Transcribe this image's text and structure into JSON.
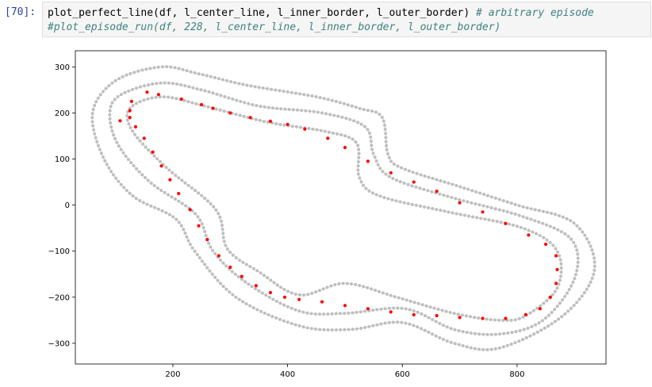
{
  "cell": {
    "prompt": "[70]:",
    "code_line1_main": "plot_perfect_line(df, l_center_line, l_inner_border, l_outer_border) ",
    "code_line1_comment": "# arbitrary episode",
    "code_line2_comment": "#plot_episode_run(df, 228, l_center_line, l_inner_border, l_outer_border)"
  },
  "colors": {
    "track_points": "#bfbfbf",
    "racing_line": "#ff0000",
    "prompt": "#303f9f",
    "comment": "#408080"
  },
  "chart_data": {
    "type": "scatter",
    "title": "",
    "xlabel": "",
    "ylabel": "",
    "xlim": [
      30,
      955
    ],
    "ylim": [
      -345,
      335
    ],
    "xticks": [
      200,
      400,
      600,
      800
    ],
    "yticks": [
      300,
      200,
      100,
      0,
      -100,
      -200,
      -300
    ],
    "grid": false,
    "series": [
      {
        "role": "outer_border",
        "color": "#bfbfbf",
        "points": [
          [
            100,
            270
          ],
          [
            180,
            300
          ],
          [
            245,
            285
          ],
          [
            330,
            260
          ],
          [
            450,
            235
          ],
          [
            525,
            210
          ],
          [
            565,
            190
          ],
          [
            575,
            110
          ],
          [
            600,
            80
          ],
          [
            700,
            40
          ],
          [
            800,
            0
          ],
          [
            900,
            -40
          ],
          [
            935,
            -140
          ],
          [
            880,
            -240
          ],
          [
            770,
            -310
          ],
          [
            690,
            -300
          ],
          [
            600,
            -255
          ],
          [
            510,
            -270
          ],
          [
            420,
            -262
          ],
          [
            310,
            -200
          ],
          [
            238,
            -100
          ],
          [
            205,
            -30
          ],
          [
            130,
            20
          ],
          [
            80,
            100
          ],
          [
            60,
            200
          ]
        ]
      },
      {
        "role": "center_line",
        "color": "#bfbfbf",
        "points": [
          [
            110,
            240
          ],
          [
            180,
            265
          ],
          [
            250,
            250
          ],
          [
            350,
            215
          ],
          [
            460,
            200
          ],
          [
            535,
            170
          ],
          [
            550,
            110
          ],
          [
            580,
            60
          ],
          [
            690,
            15
          ],
          [
            810,
            -25
          ],
          [
            895,
            -75
          ],
          [
            900,
            -160
          ],
          [
            845,
            -250
          ],
          [
            770,
            -280
          ],
          [
            690,
            -270
          ],
          [
            605,
            -225
          ],
          [
            500,
            -235
          ],
          [
            420,
            -230
          ],
          [
            330,
            -170
          ],
          [
            270,
            -100
          ],
          [
            240,
            -20
          ],
          [
            160,
            50
          ],
          [
            105,
            130
          ],
          [
            90,
            200
          ]
        ]
      },
      {
        "role": "inner_border",
        "color": "#bfbfbf",
        "points": [
          [
            125,
            210
          ],
          [
            180,
            235
          ],
          [
            255,
            215
          ],
          [
            365,
            180
          ],
          [
            465,
            160
          ],
          [
            520,
            135
          ],
          [
            525,
            60
          ],
          [
            560,
            20
          ],
          [
            680,
            -15
          ],
          [
            810,
            -50
          ],
          [
            870,
            -100
          ],
          [
            870,
            -180
          ],
          [
            815,
            -240
          ],
          [
            770,
            -250
          ],
          [
            690,
            -235
          ],
          [
            590,
            -200
          ],
          [
            500,
            -170
          ],
          [
            420,
            -195
          ],
          [
            350,
            -145
          ],
          [
            295,
            -95
          ],
          [
            275,
            -10
          ],
          [
            190,
            80
          ],
          [
            130,
            160
          ]
        ]
      },
      {
        "role": "racing_line",
        "color": "#ff0000",
        "points": [
          [
            108,
            183
          ],
          [
            125,
            205
          ],
          [
            128,
            225
          ],
          [
            155,
            245
          ],
          [
            175,
            240
          ],
          [
            215,
            230
          ],
          [
            250,
            218
          ],
          [
            270,
            210
          ],
          [
            300,
            200
          ],
          [
            335,
            190
          ],
          [
            370,
            182
          ],
          [
            400,
            175
          ],
          [
            430,
            165
          ],
          [
            470,
            145
          ],
          [
            500,
            125
          ],
          [
            540,
            95
          ],
          [
            580,
            70
          ],
          [
            620,
            50
          ],
          [
            660,
            30
          ],
          [
            700,
            5
          ],
          [
            740,
            -15
          ],
          [
            780,
            -40
          ],
          [
            820,
            -65
          ],
          [
            850,
            -85
          ],
          [
            868,
            -110
          ],
          [
            870,
            -140
          ],
          [
            868,
            -170
          ],
          [
            858,
            -200
          ],
          [
            840,
            -225
          ],
          [
            815,
            -238
          ],
          [
            780,
            -246
          ],
          [
            740,
            -246
          ],
          [
            700,
            -244
          ],
          [
            660,
            -240
          ],
          [
            620,
            -238
          ],
          [
            580,
            -232
          ],
          [
            540,
            -225
          ],
          [
            500,
            -218
          ],
          [
            460,
            -210
          ],
          [
            420,
            -205
          ],
          [
            395,
            -200
          ],
          [
            370,
            -190
          ],
          [
            345,
            -175
          ],
          [
            320,
            -155
          ],
          [
            300,
            -135
          ],
          [
            280,
            -110
          ],
          [
            260,
            -75
          ],
          [
            245,
            -45
          ],
          [
            230,
            -10
          ],
          [
            210,
            25
          ],
          [
            195,
            55
          ],
          [
            180,
            85
          ],
          [
            165,
            115
          ],
          [
            150,
            145
          ],
          [
            135,
            170
          ],
          [
            125,
            190
          ]
        ]
      }
    ]
  }
}
